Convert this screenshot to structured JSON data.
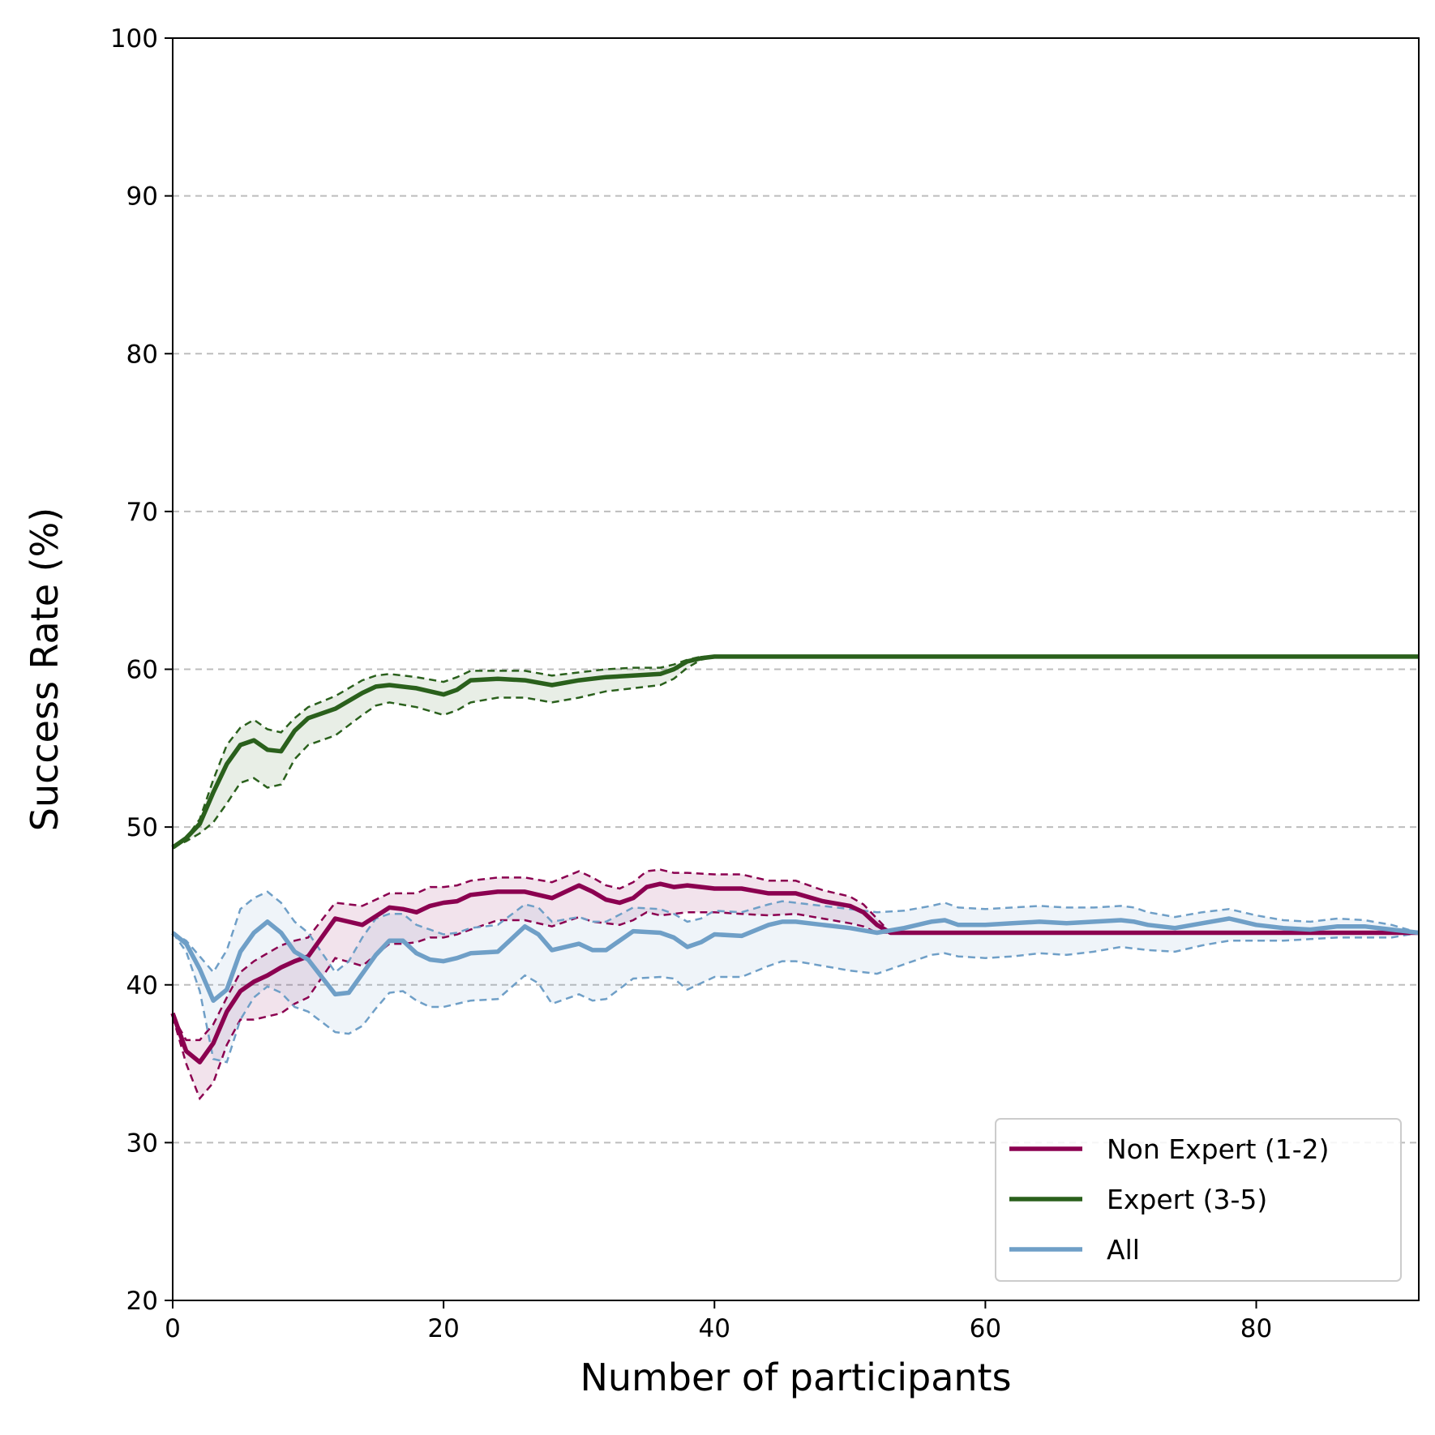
{
  "chart_data": {
    "type": "line",
    "title": "",
    "xlabel": "Number of participants",
    "ylabel": "Success Rate (%)",
    "xlim": [
      0,
      92
    ],
    "ylim": [
      20,
      100
    ],
    "x_ticks": [
      0,
      20,
      40,
      60,
      80
    ],
    "y_ticks": [
      20,
      30,
      40,
      50,
      60,
      70,
      80,
      90,
      100
    ],
    "grid": "y-dashed",
    "legend_position": "lower-right",
    "series": [
      {
        "name": "Non Expert (1-2)",
        "color": "#8b0050",
        "x": [
          0,
          1,
          2,
          3,
          4,
          5,
          6,
          7,
          8,
          9,
          10,
          12,
          14,
          16,
          17,
          18,
          19,
          20,
          21,
          22,
          24,
          26,
          28,
          30,
          31,
          32,
          33,
          34,
          35,
          36,
          37,
          38,
          40,
          42,
          44,
          46,
          48,
          50,
          51,
          52,
          53,
          55,
          60,
          70,
          80,
          92
        ],
        "mean": [
          38.2,
          35.8,
          35.1,
          36.3,
          38.3,
          39.6,
          40.2,
          40.6,
          41.1,
          41.5,
          41.8,
          44.2,
          43.8,
          44.9,
          44.8,
          44.6,
          45.0,
          45.2,
          45.3,
          45.7,
          45.9,
          45.9,
          45.5,
          46.3,
          45.9,
          45.4,
          45.2,
          45.5,
          46.2,
          46.4,
          46.2,
          46.3,
          46.1,
          46.1,
          45.8,
          45.8,
          45.3,
          45.0,
          44.6,
          43.8,
          43.3,
          43.3,
          43.3,
          43.3,
          43.3,
          43.3
        ],
        "upper": [
          38.0,
          36.5,
          36.5,
          37.5,
          39.2,
          40.8,
          41.5,
          42.0,
          42.5,
          42.8,
          43.0,
          45.2,
          45.0,
          45.8,
          45.8,
          45.8,
          46.2,
          46.2,
          46.3,
          46.6,
          46.8,
          46.8,
          46.5,
          47.2,
          46.8,
          46.3,
          46.1,
          46.5,
          47.2,
          47.3,
          47.1,
          47.1,
          47.0,
          47.0,
          46.6,
          46.6,
          46.0,
          45.6,
          45.1,
          44.2,
          43.3,
          43.3,
          43.3,
          43.3,
          43.3,
          43.3
        ],
        "lower": [
          38.0,
          35.0,
          32.8,
          33.8,
          36.2,
          37.8,
          37.8,
          38.0,
          38.2,
          38.8,
          39.2,
          41.7,
          41.2,
          42.6,
          42.6,
          42.7,
          43.0,
          43.0,
          43.2,
          43.5,
          44.1,
          44.1,
          43.7,
          44.3,
          44.0,
          43.9,
          43.8,
          44.1,
          44.6,
          44.4,
          44.5,
          44.6,
          44.6,
          44.5,
          44.4,
          44.5,
          44.2,
          43.9,
          43.7,
          43.3,
          43.3,
          43.3,
          43.3,
          43.3,
          43.3,
          43.3
        ]
      },
      {
        "name": "Expert (3-5)",
        "color": "#2a601c",
        "x": [
          0,
          1,
          2,
          3,
          4,
          5,
          6,
          7,
          8,
          9,
          10,
          12,
          14,
          15,
          16,
          18,
          20,
          21,
          22,
          24,
          26,
          28,
          30,
          32,
          34,
          36,
          37,
          38,
          39,
          40,
          92
        ],
        "mean": [
          48.7,
          49.3,
          50.2,
          52.2,
          54.0,
          55.2,
          55.5,
          54.9,
          54.8,
          56.1,
          56.9,
          57.5,
          58.5,
          58.9,
          59.0,
          58.8,
          58.4,
          58.7,
          59.3,
          59.4,
          59.3,
          59.0,
          59.3,
          59.5,
          59.6,
          59.7,
          60.0,
          60.5,
          60.7,
          60.8,
          60.8
        ],
        "upper": [
          48.7,
          49.3,
          50.5,
          53.0,
          55.2,
          56.3,
          56.8,
          56.2,
          56.0,
          56.9,
          57.6,
          58.3,
          59.3,
          59.6,
          59.7,
          59.5,
          59.2,
          59.5,
          59.9,
          59.9,
          59.9,
          59.6,
          59.8,
          60.0,
          60.1,
          60.1,
          60.3,
          60.6,
          60.8,
          60.8,
          60.8
        ],
        "lower": [
          48.7,
          49.1,
          49.6,
          50.3,
          51.5,
          52.8,
          53.1,
          52.5,
          52.7,
          54.3,
          55.2,
          55.8,
          57.1,
          57.7,
          57.9,
          57.6,
          57.1,
          57.4,
          57.9,
          58.2,
          58.2,
          57.9,
          58.2,
          58.6,
          58.8,
          59.0,
          59.4,
          60.1,
          60.6,
          60.8,
          60.8
        ]
      },
      {
        "name": "All",
        "color": "#6f9fc7",
        "x": [
          0,
          1,
          2,
          3,
          4,
          5,
          6,
          7,
          8,
          9,
          10,
          12,
          13,
          14,
          15,
          16,
          17,
          18,
          19,
          20,
          21,
          22,
          24,
          26,
          27,
          28,
          30,
          31,
          32,
          34,
          36,
          37,
          38,
          39,
          40,
          42,
          44,
          45,
          46,
          48,
          50,
          52,
          54,
          56,
          57,
          58,
          60,
          62,
          64,
          66,
          68,
          70,
          71,
          72,
          74,
          76,
          78,
          80,
          82,
          84,
          86,
          88,
          90,
          92
        ],
        "mean": [
          43.3,
          42.6,
          41.0,
          39.0,
          39.7,
          42.1,
          43.3,
          44.0,
          43.3,
          42.1,
          41.6,
          39.4,
          39.5,
          40.7,
          41.9,
          42.8,
          42.8,
          42.0,
          41.6,
          41.5,
          41.7,
          42.0,
          42.1,
          43.7,
          43.2,
          42.2,
          42.6,
          42.2,
          42.2,
          43.4,
          43.3,
          43.0,
          42.4,
          42.7,
          43.2,
          43.1,
          43.8,
          44.0,
          44.0,
          43.8,
          43.6,
          43.3,
          43.6,
          44.0,
          44.1,
          43.8,
          43.8,
          43.9,
          44.0,
          43.9,
          44.0,
          44.1,
          44.0,
          43.8,
          43.6,
          43.9,
          44.2,
          43.8,
          43.6,
          43.5,
          43.7,
          43.7,
          43.5,
          43.3
        ],
        "upper": [
          43.3,
          42.8,
          41.8,
          40.8,
          42.2,
          44.8,
          45.5,
          45.9,
          45.2,
          44.0,
          43.3,
          40.8,
          41.5,
          43.0,
          44.2,
          44.5,
          44.5,
          43.8,
          43.5,
          43.2,
          43.3,
          43.6,
          43.8,
          45.1,
          44.9,
          44.0,
          44.3,
          44.0,
          44.0,
          44.9,
          44.8,
          44.5,
          44.0,
          44.2,
          44.7,
          44.6,
          45.1,
          45.3,
          45.2,
          45.0,
          44.8,
          44.6,
          44.7,
          45.0,
          45.2,
          44.9,
          44.8,
          44.9,
          45.0,
          44.9,
          44.9,
          45.0,
          44.9,
          44.6,
          44.3,
          44.6,
          44.8,
          44.4,
          44.1,
          44.0,
          44.2,
          44.1,
          43.8,
          43.3
        ],
        "lower": [
          43.3,
          42.1,
          39.6,
          35.3,
          35.1,
          37.8,
          39.2,
          39.9,
          39.5,
          38.6,
          38.3,
          37.0,
          36.9,
          37.4,
          38.5,
          39.5,
          39.6,
          39.0,
          38.6,
          38.6,
          38.8,
          39.0,
          39.1,
          40.6,
          40.1,
          38.8,
          39.4,
          39.0,
          39.1,
          40.4,
          40.5,
          40.4,
          39.7,
          40.1,
          40.5,
          40.5,
          41.2,
          41.5,
          41.5,
          41.2,
          40.9,
          40.7,
          41.3,
          41.9,
          42.0,
          41.8,
          41.7,
          41.8,
          42.0,
          41.9,
          42.1,
          42.4,
          42.3,
          42.2,
          42.1,
          42.5,
          42.8,
          42.8,
          42.8,
          42.9,
          43.0,
          43.0,
          43.0,
          43.3
        ]
      }
    ]
  }
}
